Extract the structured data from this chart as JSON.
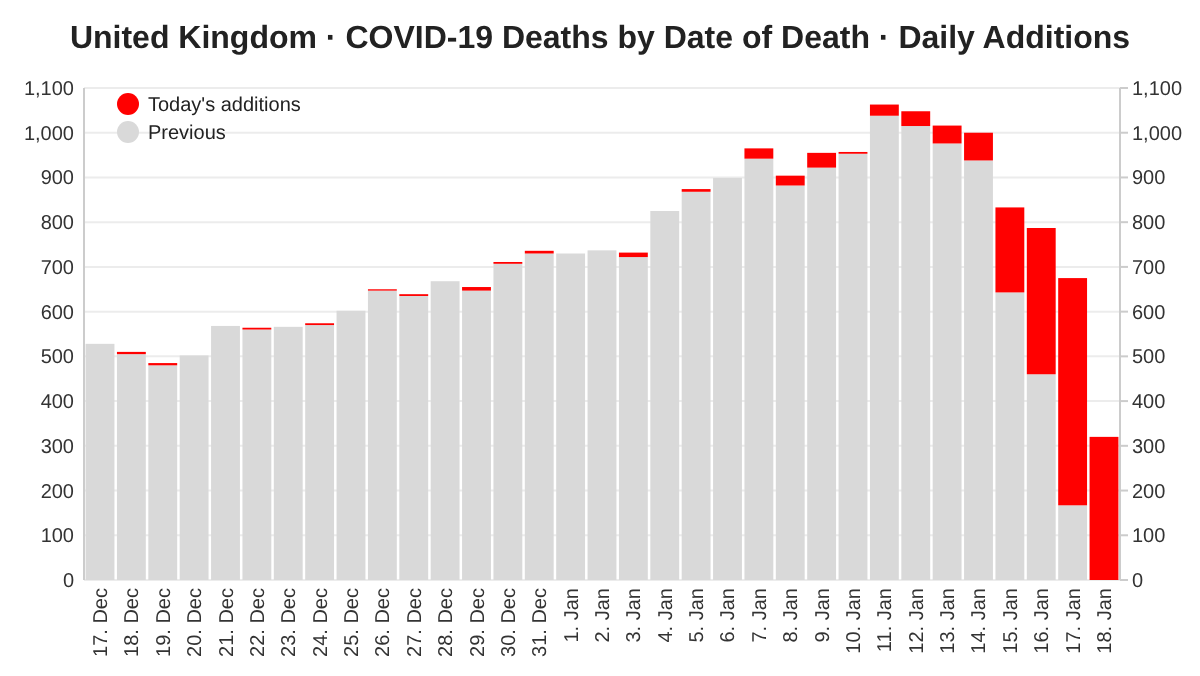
{
  "chart_data": {
    "type": "bar",
    "title": "United Kingdom · COVID-19 Deaths by Date of Death · Daily Additions",
    "stacked": true,
    "categories": [
      "17. Dec",
      "18. Dec",
      "19. Dec",
      "20. Dec",
      "21. Dec",
      "22. Dec",
      "23. Dec",
      "24. Dec",
      "25. Dec",
      "26. Dec",
      "27. Dec",
      "28. Dec",
      "29. Dec",
      "30. Dec",
      "31. Dec",
      "1. Jan",
      "2. Jan",
      "3. Jan",
      "4. Jan",
      "5. Jan",
      "6. Jan",
      "7. Jan",
      "8. Jan",
      "9. Jan",
      "10. Jan",
      "11. Jan",
      "12. Jan",
      "13. Jan",
      "14. Jan",
      "15. Jan",
      "16. Jan",
      "17. Jan",
      "18. Jan"
    ],
    "series": [
      {
        "name": "Previous",
        "color": "#d9d9d9",
        "values": [
          528,
          505,
          480,
          502,
          568,
          560,
          566,
          570,
          602,
          647,
          635,
          668,
          647,
          707,
          730,
          730,
          737,
          722,
          825,
          868,
          899,
          942,
          882,
          922,
          953,
          1038,
          1015,
          976,
          938,
          643,
          460,
          167,
          0
        ]
      },
      {
        "name": "Today's additions",
        "color": "#ff0000",
        "values": [
          0,
          5,
          5,
          0,
          0,
          4,
          0,
          4,
          0,
          3,
          4,
          0,
          8,
          4,
          6,
          0,
          0,
          10,
          0,
          6,
          0,
          23,
          22,
          33,
          4,
          25,
          33,
          40,
          62,
          190,
          327,
          508,
          320
        ]
      }
    ],
    "ylim": [
      0,
      1100
    ],
    "yticks": [
      0,
      100,
      200,
      300,
      400,
      500,
      600,
      700,
      800,
      900,
      {
        "value": 1000,
        "label": "1,000"
      },
      {
        "value": 1100,
        "label": "1,100"
      }
    ],
    "y2lim": [
      0,
      1100
    ],
    "y2ticks": [
      0,
      100,
      200,
      300,
      400,
      500,
      600,
      700,
      800,
      900,
      {
        "value": 1000,
        "label": "1,000"
      },
      {
        "value": 1100,
        "label": "1,100"
      }
    ],
    "grid": "y",
    "legend": "top left"
  }
}
